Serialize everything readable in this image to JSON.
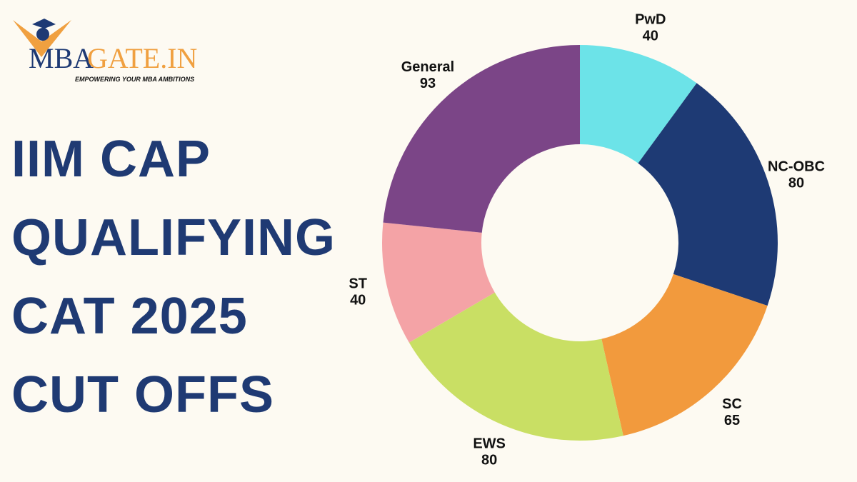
{
  "logo": {
    "brand_part1": "MBA",
    "brand_part2": "GATE.IN",
    "tagline": "EMPOWERING YOUR MBA AMBITIONS"
  },
  "title_lines": [
    "IIM CAP",
    "QUALIFYING",
    "CAT 2025",
    "CUT OFFS"
  ],
  "chart_data": {
    "type": "pie",
    "donut": true,
    "categories": [
      "PwD",
      "NC-OBC",
      "SC",
      "EWS",
      "ST",
      "General"
    ],
    "values": [
      40,
      80,
      65,
      80,
      40,
      93
    ],
    "colors": [
      "#6ce3e8",
      "#1e3a74",
      "#f29a3d",
      "#c9df64",
      "#f4a3a6",
      "#7b4587"
    ],
    "start": "top",
    "direction": "clockwise"
  }
}
